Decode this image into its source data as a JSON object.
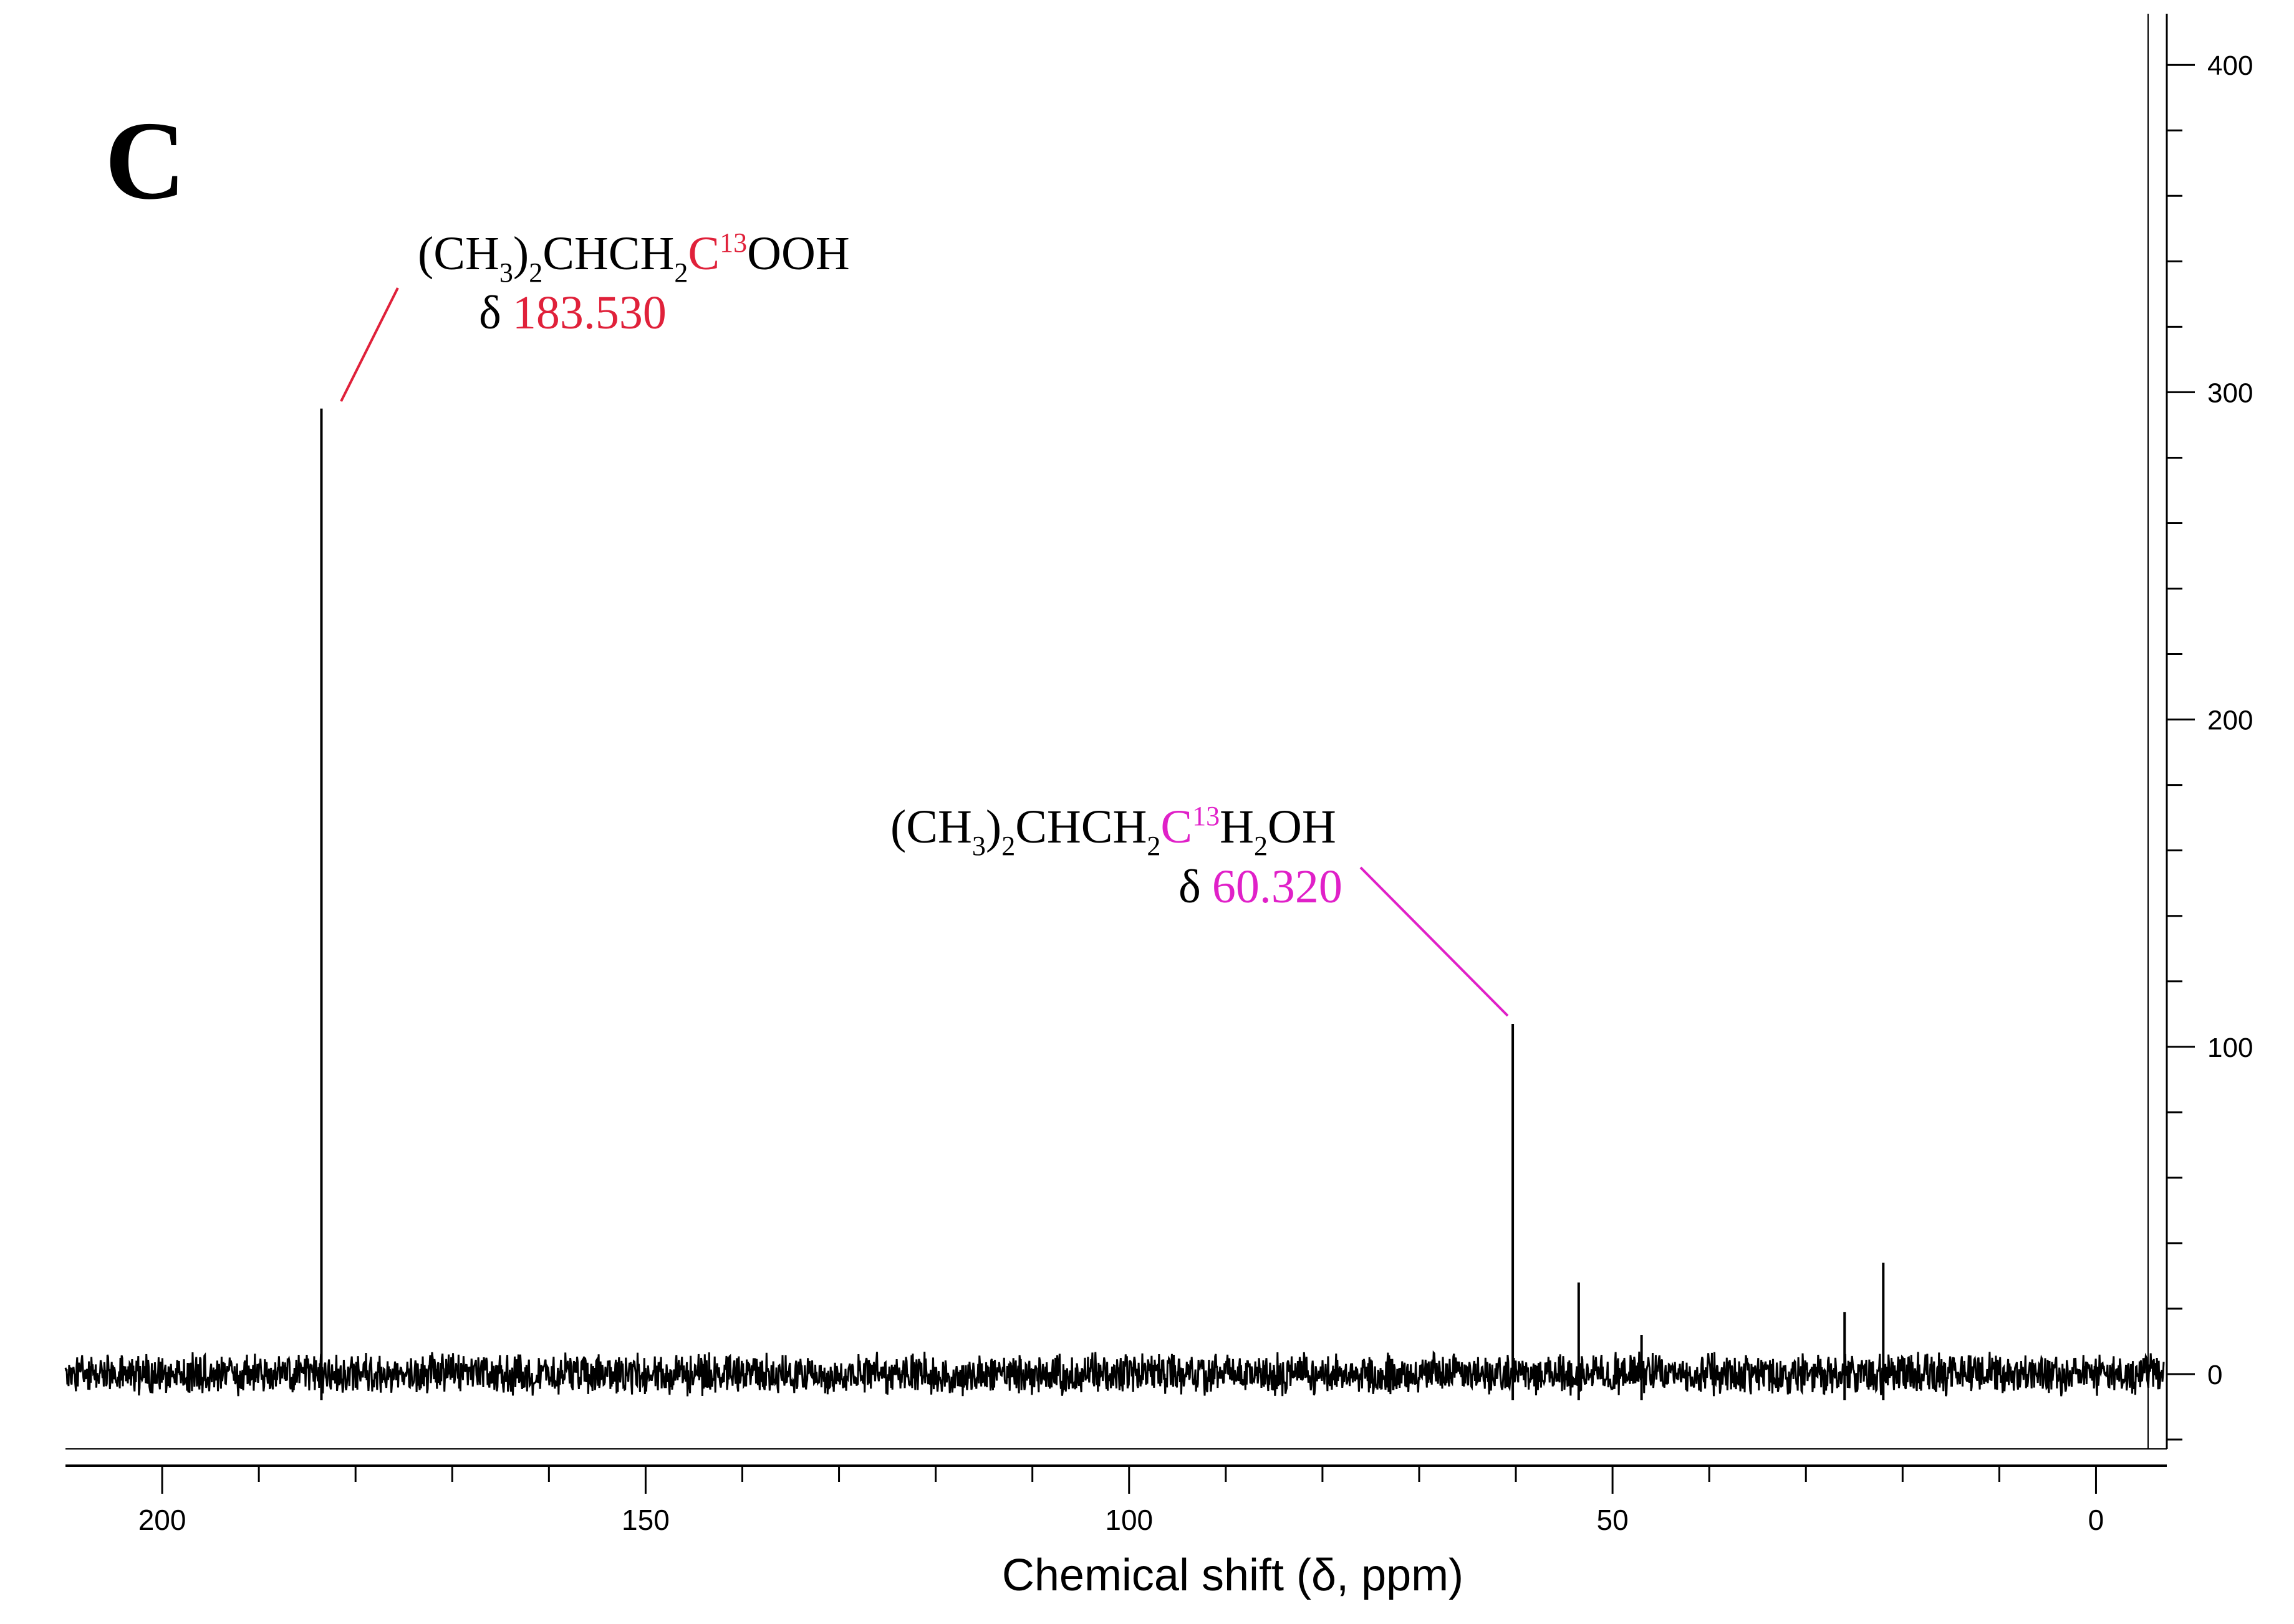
{
  "panel_label": "C",
  "colors": {
    "axis": "#000000",
    "spectrum": "#000000",
    "carboxyl_highlight": "#e0213a",
    "alcohol_highlight": "#e020c8"
  },
  "chart_data": {
    "type": "line",
    "title": "",
    "xlabel": "Chemical shift (δ, ppm)",
    "ylabel": "",
    "x_reversed": true,
    "xlim": [
      210,
      -7
    ],
    "ylim": [
      -25,
      420
    ],
    "x_ticks": [
      200,
      150,
      100,
      50,
      0
    ],
    "y_ticks": [
      0,
      100,
      200,
      300,
      400
    ],
    "x_tick_labels": [
      "200",
      "150",
      "100",
      "50",
      "0"
    ],
    "y_tick_labels": [
      "0",
      "100",
      "200",
      "300",
      "400"
    ],
    "grid": false,
    "series": [
      {
        "peaks": [
          {
            "x": 183.53,
            "y": 295
          },
          {
            "x": 60.32,
            "y": 107
          },
          {
            "x": 53.5,
            "y": 28
          },
          {
            "x": 47.0,
            "y": 12
          },
          {
            "x": 26.0,
            "y": 19
          },
          {
            "x": 22.0,
            "y": 34
          }
        ],
        "noise_amplitude": 5
      }
    ],
    "annotations": [
      {
        "id": "carboxyl",
        "formula": {
          "a": "(CH",
          "s1": "3",
          "b": ")",
          "s2": "2",
          "c": "CHCH",
          "s3": "2",
          "hl": "C",
          "iso": "13",
          "d": "OOH"
        },
        "delta_symbol": "δ",
        "delta_value": "183.530",
        "peak_x": 183.53
      },
      {
        "id": "alcohol",
        "formula": {
          "a": "(CH",
          "s1": "3",
          "b": ")",
          "s2": "2",
          "c": "CHCH",
          "s3": "2",
          "hl": "C",
          "iso": "13",
          "d": "H",
          "s4": "2",
          "e": "OH"
        },
        "delta_symbol": "δ",
        "delta_value": "60.320",
        "peak_x": 60.32
      }
    ]
  }
}
